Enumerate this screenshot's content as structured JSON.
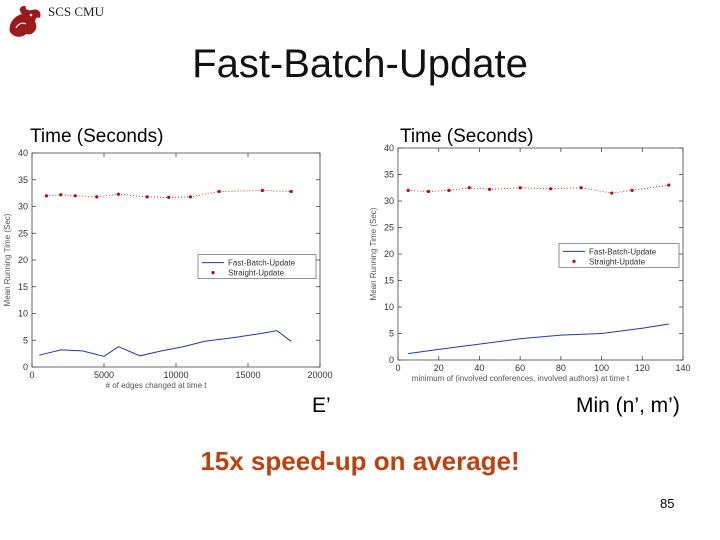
{
  "header": {
    "org": "SCS CMU"
  },
  "slide": {
    "title": "Fast-Batch-Update",
    "highlight": "15x speed-up on average!",
    "page_number": "85"
  },
  "colors": {
    "fast": "#2233cc",
    "straight": "#cc0000",
    "highlight": "#c0400d"
  },
  "chart_data": [
    {
      "type": "line",
      "slide_ylabel": "Time (Seconds)",
      "slide_xlabel": "E’",
      "ylabel": "Mean Running Time (Sec)",
      "xlabel": "# of edges changed at time t",
      "xlim": [
        0,
        20000
      ],
      "ylim": [
        0,
        40
      ],
      "xticks": [
        0,
        5000,
        10000,
        15000,
        20000
      ],
      "yticks": [
        0,
        5,
        10,
        15,
        20,
        25,
        30,
        35,
        40
      ],
      "legend_position": "center-right",
      "series": [
        {
          "name": "Fast-Batch-Update",
          "style": "line",
          "x": [
            500,
            2000,
            3500,
            5000,
            6000,
            7500,
            9000,
            10500,
            12000,
            14000,
            16000,
            17000,
            18000
          ],
          "y": [
            2.2,
            3.2,
            3.0,
            2.0,
            3.8,
            2.1,
            3.0,
            3.8,
            4.8,
            5.5,
            6.3,
            6.8,
            4.8
          ]
        },
        {
          "name": "Straight-Update",
          "style": "points",
          "x": [
            1000,
            2000,
            3000,
            4500,
            6000,
            8000,
            9500,
            11000,
            13000,
            16000,
            18000
          ],
          "y": [
            32.0,
            32.2,
            32.0,
            31.8,
            32.3,
            31.8,
            31.7,
            31.8,
            32.8,
            33.0,
            32.8
          ]
        }
      ]
    },
    {
      "type": "line",
      "slide_ylabel": "Time (Seconds)",
      "slide_xlabel": "Min (n’, m’)",
      "ylabel": "Mean Running Time (Sec)",
      "xlabel": "minimum of (involved conferences, involved authors) at time t",
      "xlim": [
        0,
        140
      ],
      "ylim": [
        0,
        40
      ],
      "xticks": [
        0,
        20,
        40,
        60,
        80,
        100,
        120,
        140
      ],
      "yticks": [
        0,
        5,
        10,
        15,
        20,
        25,
        30,
        35,
        40
      ],
      "legend_position": "center-right",
      "series": [
        {
          "name": "Fast-Batch-Update",
          "style": "line",
          "x": [
            5,
            20,
            40,
            60,
            80,
            100,
            110,
            120,
            133
          ],
          "y": [
            1.2,
            2.0,
            3.0,
            4.0,
            4.7,
            5.0,
            5.5,
            6.0,
            6.8
          ]
        },
        {
          "name": "Straight-Update",
          "style": "points",
          "x": [
            5,
            15,
            25,
            35,
            45,
            60,
            75,
            90,
            105,
            115,
            133
          ],
          "y": [
            32.0,
            31.8,
            32.0,
            32.5,
            32.2,
            32.5,
            32.3,
            32.5,
            31.5,
            32.0,
            33.0
          ]
        }
      ]
    }
  ]
}
